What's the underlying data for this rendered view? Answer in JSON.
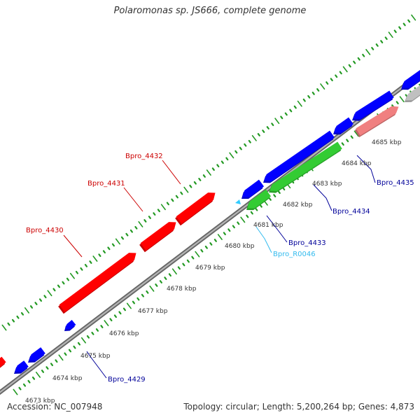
{
  "title": "Polaromonas sp. JS666, complete genome",
  "footer": {
    "accession": "Accession: NC_007948",
    "summary": "Topology: circular; Length: 5,200,264 bp; Genes: 4,873"
  },
  "colors": {
    "forward_cds": "#ff0000",
    "reverse_cds": "#0000ff",
    "rrna": "#33cc33",
    "trna": "#33ccff",
    "pseudo_forward": "#f08080",
    "pseudo_reverse": "#c0c0c0",
    "backbone": "#888888",
    "tick": "#229922",
    "label_forward": "#cc0000",
    "label_reverse": "#000099",
    "label_rna": "#33bbee"
  },
  "ruler": [
    {
      "label": "4673 kbp"
    },
    {
      "label": "4674 kbp"
    },
    {
      "label": "4675 kbp"
    },
    {
      "label": "4676 kbp"
    },
    {
      "label": "4677 kbp"
    },
    {
      "label": "4678 kbp"
    },
    {
      "label": "4679 kbp"
    },
    {
      "label": "4680 kbp"
    },
    {
      "label": "4681 kbp"
    },
    {
      "label": "4682 kbp"
    },
    {
      "label": "4683 kbp"
    },
    {
      "label": "4684 kbp"
    },
    {
      "label": "4685 kbp"
    }
  ],
  "gene_labels": [
    {
      "name": "Bpro_4430",
      "strand": "forward"
    },
    {
      "name": "Bpro_4431",
      "strand": "forward"
    },
    {
      "name": "Bpro_4432",
      "strand": "forward"
    },
    {
      "name": "Bpro_4429",
      "strand": "reverse"
    },
    {
      "name": "Bpro_4433",
      "strand": "reverse"
    },
    {
      "name": "Bpro_R0046",
      "strand": "rna"
    },
    {
      "name": "Bpro_4434",
      "strand": "reverse"
    },
    {
      "name": "Bpro_4435",
      "strand": "reverse"
    }
  ]
}
